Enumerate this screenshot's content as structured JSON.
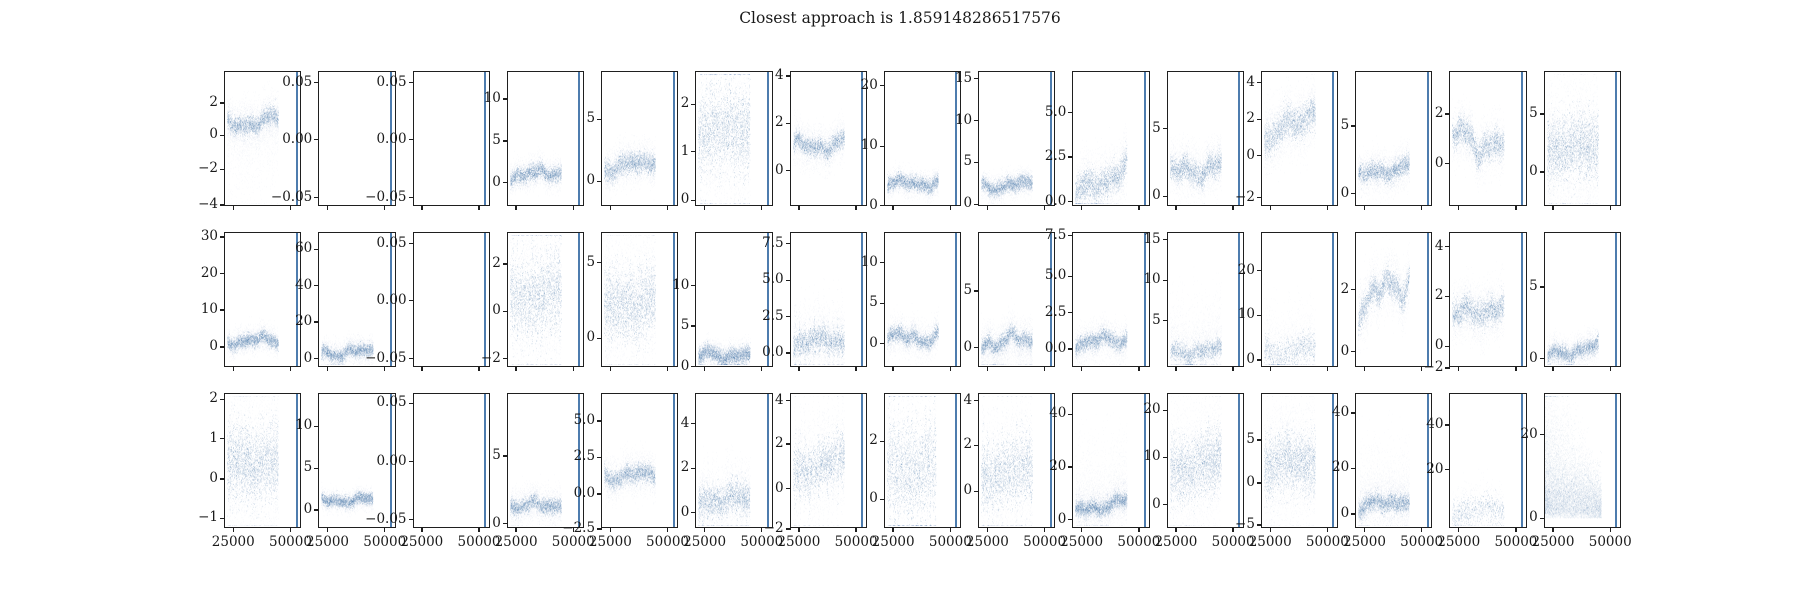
{
  "figure": {
    "title": "Closest approach is 1.859148286517576",
    "background": "#ffffff",
    "spine_color": "#1f1f1f",
    "marker_color": "#2e639c",
    "vline_color": "#4d7cae"
  },
  "chart_data": {
    "type": "scatter",
    "title": "Closest approach is 1.859148286517576",
    "grid": {
      "rows": 3,
      "cols": 15
    },
    "legend": "none",
    "x_tick_labels_bottom_row_only": true,
    "x_ticks": [
      {
        "label": "25000",
        "f": 0.11
      },
      {
        "label": "50000",
        "f": 0.87
      }
    ],
    "vline_x_frac": 0.95,
    "data_x_span": [
      0.03,
      0.71
    ],
    "subplots": [
      {
        "r": 1,
        "c": 1,
        "yticks": [
          [
            "2",
            0.23
          ],
          [
            "0",
            0.47
          ],
          [
            "−2",
            0.72
          ],
          [
            "−4",
            0.985
          ]
        ],
        "series": {
          "k": "band",
          "c0": 0.4,
          "c1": 0.35,
          "t": 0.035,
          "s": 0.09,
          "w": 0.025,
          "tail": "down",
          "tl": 0.28
        }
      },
      {
        "r": 1,
        "c": 2,
        "yticks": [
          [
            "0.05",
            0.08
          ],
          [
            "0.00",
            0.5
          ],
          [
            "−0.05",
            0.93
          ]
        ],
        "series": {
          "k": "empty"
        }
      },
      {
        "r": 1,
        "c": 3,
        "yticks": [
          [
            "0.05",
            0.08
          ],
          [
            "0.00",
            0.5
          ],
          [
            "−0.05",
            0.93
          ]
        ],
        "series": {
          "k": "empty"
        }
      },
      {
        "r": 1,
        "c": 4,
        "yticks": [
          [
            "10",
            0.2
          ],
          [
            "5",
            0.51
          ],
          [
            "0",
            0.82
          ]
        ],
        "series": {
          "k": "band",
          "c0": 0.78,
          "c1": 0.75,
          "t": 0.03,
          "s": 0.06
        }
      },
      {
        "r": 1,
        "c": 5,
        "yticks": [
          [
            "5",
            0.35
          ],
          [
            "0",
            0.81
          ]
        ],
        "series": {
          "k": "band",
          "c0": 0.73,
          "c1": 0.66,
          "t": 0.04,
          "s": 0.08
        }
      },
      {
        "r": 1,
        "c": 6,
        "yticks": [
          [
            "2",
            0.24
          ],
          [
            "1",
            0.59
          ],
          [
            "0",
            0.95
          ]
        ],
        "series": {
          "k": "band",
          "c0": 0.45,
          "c1": 0.42,
          "t": 0.12,
          "s": 0.24,
          "d": 1.25,
          "b": 0.3
        }
      },
      {
        "r": 1,
        "c": 7,
        "yticks": [
          [
            "4",
            0.03
          ],
          [
            "2",
            0.38
          ],
          [
            "0",
            0.73
          ]
        ],
        "series": {
          "k": "band",
          "c0": 0.56,
          "c1": 0.54,
          "t": 0.035,
          "s": 0.08,
          "w": 0.03
        }
      },
      {
        "r": 1,
        "c": 8,
        "yticks": [
          [
            "20",
            0.1
          ],
          [
            "10",
            0.55
          ],
          [
            "0",
            0.99
          ]
        ],
        "series": {
          "k": "band",
          "c0": 0.84,
          "c1": 0.83,
          "t": 0.028,
          "s": 0.05
        }
      },
      {
        "r": 1,
        "c": 9,
        "yticks": [
          [
            "15",
            0.05
          ],
          [
            "10",
            0.36
          ],
          [
            "5",
            0.67
          ],
          [
            "0",
            0.98
          ]
        ],
        "series": {
          "k": "band",
          "c0": 0.86,
          "c1": 0.84,
          "t": 0.028,
          "s": 0.05
        }
      },
      {
        "r": 1,
        "c": 10,
        "yticks": [
          [
            "5.0",
            0.3
          ],
          [
            "2.5",
            0.63
          ],
          [
            "0.0",
            0.96
          ]
        ],
        "series": {
          "k": "band",
          "c0": 0.92,
          "c1": 0.72,
          "t": 0.055,
          "s": 0.12,
          "w": 0.03
        }
      },
      {
        "r": 1,
        "c": 11,
        "yticks": [
          [
            "5",
            0.42
          ],
          [
            "0",
            0.92
          ]
        ],
        "series": {
          "k": "band",
          "c0": 0.76,
          "c1": 0.7,
          "t": 0.045,
          "s": 0.1,
          "w": 0.035
        }
      },
      {
        "r": 1,
        "c": 12,
        "yticks": [
          [
            "4",
            0.08
          ],
          [
            "2",
            0.35
          ],
          [
            "0",
            0.62
          ],
          [
            "−2",
            0.93
          ]
        ],
        "series": {
          "k": "band",
          "c0": 0.52,
          "c1": 0.28,
          "t": 0.06,
          "s": 0.13,
          "w": 0.03
        }
      },
      {
        "r": 1,
        "c": 13,
        "yticks": [
          [
            "5",
            0.4
          ],
          [
            "0",
            0.9
          ]
        ],
        "series": {
          "k": "band",
          "c0": 0.78,
          "c1": 0.7,
          "t": 0.035,
          "s": 0.08
        }
      },
      {
        "r": 1,
        "c": 14,
        "yticks": [
          [
            "2",
            0.31
          ],
          [
            "0",
            0.68
          ]
        ],
        "series": {
          "k": "band",
          "c0": 0.48,
          "c1": 0.56,
          "t": 0.05,
          "s": 0.11,
          "w": 0.06
        }
      },
      {
        "r": 1,
        "c": 15,
        "yticks": [
          [
            "5",
            0.31
          ],
          [
            "0",
            0.74
          ]
        ],
        "series": {
          "k": "band",
          "c0": 0.58,
          "c1": 0.55,
          "t": 0.12,
          "s": 0.24,
          "d": 1.3
        }
      },
      {
        "r": 2,
        "c": 1,
        "yticks": [
          [
            "30",
            0.03
          ],
          [
            "20",
            0.3
          ],
          [
            "10",
            0.57
          ],
          [
            "0",
            0.845
          ]
        ],
        "series": {
          "k": "band",
          "c0": 0.81,
          "c1": 0.8,
          "t": 0.025,
          "s": 0.05
        }
      },
      {
        "r": 2,
        "c": 2,
        "yticks": [
          [
            "60",
            0.12
          ],
          [
            "40",
            0.39
          ],
          [
            "20",
            0.66
          ],
          [
            "0",
            0.93
          ]
        ],
        "series": {
          "k": "band",
          "c0": 0.9,
          "c1": 0.89,
          "t": 0.025,
          "s": 0.05
        }
      },
      {
        "r": 2,
        "c": 3,
        "yticks": [
          [
            "0.05",
            0.08
          ],
          [
            "0.00",
            0.5
          ],
          [
            "−0.05",
            0.93
          ]
        ],
        "series": {
          "k": "empty"
        }
      },
      {
        "r": 2,
        "c": 4,
        "yticks": [
          [
            "2",
            0.23
          ],
          [
            "0",
            0.58
          ],
          [
            "−2",
            0.93
          ]
        ],
        "series": {
          "k": "band",
          "c0": 0.5,
          "c1": 0.44,
          "t": 0.11,
          "s": 0.23,
          "d": 1.2,
          "b": 0.35
        }
      },
      {
        "r": 2,
        "c": 5,
        "yticks": [
          [
            "5",
            0.22
          ],
          [
            "0",
            0.78
          ]
        ],
        "series": {
          "k": "band",
          "c0": 0.56,
          "c1": 0.5,
          "t": 0.13,
          "s": 0.25,
          "d": 1.2
        }
      },
      {
        "r": 2,
        "c": 6,
        "yticks": [
          [
            "10",
            0.39
          ],
          [
            "5",
            0.69
          ],
          [
            "0",
            0.99
          ]
        ],
        "series": {
          "k": "band",
          "c0": 0.92,
          "c1": 0.91,
          "t": 0.03,
          "s": 0.05,
          "d": 1.2
        }
      },
      {
        "r": 2,
        "c": 7,
        "yticks": [
          [
            "7.5",
            0.08
          ],
          [
            "5.0",
            0.35
          ],
          [
            "2.5",
            0.62
          ],
          [
            "0.0",
            0.89
          ]
        ],
        "series": {
          "k": "band",
          "c0": 0.82,
          "c1": 0.8,
          "t": 0.035,
          "s": 0.09,
          "b": 0.4
        }
      },
      {
        "r": 2,
        "c": 8,
        "yticks": [
          [
            "10",
            0.22
          ],
          [
            "5",
            0.52
          ],
          [
            "0",
            0.82
          ]
        ],
        "series": {
          "k": "band",
          "c0": 0.79,
          "c1": 0.78,
          "t": 0.03,
          "s": 0.07,
          "w": 0.03
        }
      },
      {
        "r": 2,
        "c": 9,
        "yticks": [
          [
            "5",
            0.43
          ],
          [
            "0",
            0.85
          ]
        ],
        "series": {
          "k": "band",
          "c0": 0.82,
          "c1": 0.8,
          "t": 0.03,
          "s": 0.08,
          "w": 0.035,
          "tail": "down",
          "tl": 0.12
        }
      },
      {
        "r": 2,
        "c": 10,
        "yticks": [
          [
            "7.5",
            0.02
          ],
          [
            "5.0",
            0.32
          ],
          [
            "2.5",
            0.59
          ],
          [
            "0.0",
            0.86
          ]
        ],
        "series": {
          "k": "band",
          "c0": 0.83,
          "c1": 0.79,
          "t": 0.03,
          "s": 0.07,
          "w": 0.025
        }
      },
      {
        "r": 2,
        "c": 11,
        "yticks": [
          [
            "15",
            0.05
          ],
          [
            "10",
            0.35
          ],
          [
            "5",
            0.65
          ]
        ],
        "series": {
          "k": "band",
          "c0": 0.9,
          "c1": 0.88,
          "t": 0.035,
          "s": 0.09,
          "d": 0.75,
          "tail": "up",
          "tl": 0.22
        }
      },
      {
        "r": 2,
        "c": 12,
        "yticks": [
          [
            "20",
            0.28
          ],
          [
            "10",
            0.61
          ],
          [
            "0",
            0.94
          ]
        ],
        "series": {
          "k": "band",
          "c0": 0.9,
          "c1": 0.87,
          "t": 0.05,
          "s": 0.11,
          "d": 0.45,
          "tail": "up",
          "tl": 0.2
        }
      },
      {
        "r": 2,
        "c": 13,
        "yticks": [
          [
            "2",
            0.42
          ],
          [
            "0",
            0.88
          ]
        ],
        "series": {
          "k": "band",
          "c0": 0.55,
          "c1": 0.33,
          "t": 0.05,
          "s": 0.12,
          "w": 0.07
        }
      },
      {
        "r": 2,
        "c": 14,
        "yticks": [
          [
            "4",
            0.1
          ],
          [
            "2",
            0.47
          ],
          [
            "0",
            0.84
          ],
          [
            "−2",
            1.0
          ]
        ],
        "series": {
          "k": "band",
          "c0": 0.62,
          "c1": 0.55,
          "t": 0.05,
          "s": 0.11,
          "w": 0.03
        }
      },
      {
        "r": 2,
        "c": 15,
        "yticks": [
          [
            "5",
            0.4
          ],
          [
            "0",
            0.93
          ]
        ],
        "series": {
          "k": "band",
          "c0": 0.92,
          "c1": 0.85,
          "t": 0.03,
          "s": 0.06
        }
      },
      {
        "r": 3,
        "c": 1,
        "yticks": [
          [
            "2",
            0.04
          ],
          [
            "1",
            0.33
          ],
          [
            "0",
            0.63
          ],
          [
            "−1",
            0.92
          ]
        ],
        "series": {
          "k": "band",
          "c0": 0.52,
          "c1": 0.5,
          "t": 0.14,
          "s": 0.26,
          "d": 1.3
        }
      },
      {
        "r": 3,
        "c": 2,
        "yticks": [
          [
            "10",
            0.24
          ],
          [
            "5",
            0.55
          ],
          [
            "0",
            0.86
          ]
        ],
        "series": {
          "k": "band",
          "c0": 0.8,
          "c1": 0.79,
          "t": 0.022,
          "s": 0.04,
          "w": 0.015
        }
      },
      {
        "r": 3,
        "c": 3,
        "yticks": [
          [
            "0.05",
            0.07
          ],
          [
            "0.00",
            0.5
          ],
          [
            "−0.05",
            0.93
          ]
        ],
        "series": {
          "k": "empty"
        }
      },
      {
        "r": 3,
        "c": 4,
        "yticks": [
          [
            "5",
            0.46
          ],
          [
            "0",
            0.96
          ]
        ],
        "series": {
          "k": "band",
          "c0": 0.84,
          "c1": 0.83,
          "t": 0.03,
          "s": 0.07
        }
      },
      {
        "r": 3,
        "c": 5,
        "yticks": [
          [
            "5.0",
            0.2
          ],
          [
            "2.5",
            0.47
          ],
          [
            "0.0",
            0.74
          ],
          [
            "−2.5",
            1.0
          ]
        ],
        "series": {
          "k": "band",
          "c0": 0.62,
          "c1": 0.6,
          "t": 0.035,
          "s": 0.08
        }
      },
      {
        "r": 3,
        "c": 6,
        "yticks": [
          [
            "4",
            0.22
          ],
          [
            "2",
            0.55
          ],
          [
            "0",
            0.88
          ]
        ],
        "series": {
          "k": "band",
          "c0": 0.8,
          "c1": 0.78,
          "t": 0.045,
          "s": 0.1,
          "b": 0.3
        }
      },
      {
        "r": 3,
        "c": 7,
        "yticks": [
          [
            "4",
            0.05
          ],
          [
            "2",
            0.37
          ],
          [
            "0",
            0.7
          ],
          [
            "−2",
            1.0
          ]
        ],
        "series": {
          "k": "band",
          "c0": 0.6,
          "c1": 0.47,
          "t": 0.06,
          "s": 0.14,
          "b": 0.5
        }
      },
      {
        "r": 3,
        "c": 8,
        "yticks": [
          [
            "2",
            0.35
          ],
          [
            "0",
            0.78
          ]
        ],
        "series": {
          "k": "band",
          "c0": 0.58,
          "c1": 0.55,
          "t": 0.12,
          "s": 0.22,
          "b": 0.5,
          "d": 1.1,
          "xe": 0.68
        }
      },
      {
        "r": 3,
        "c": 9,
        "yticks": [
          [
            "4",
            0.05
          ],
          [
            "2",
            0.38
          ],
          [
            "0",
            0.72
          ]
        ],
        "series": {
          "k": "band",
          "c0": 0.62,
          "c1": 0.55,
          "t": 0.09,
          "s": 0.18,
          "b": 0.4,
          "d": 1.1
        }
      },
      {
        "r": 3,
        "c": 10,
        "yticks": [
          [
            "40",
            0.15
          ],
          [
            "20",
            0.54
          ],
          [
            "0",
            0.93
          ]
        ],
        "series": {
          "k": "band",
          "c0": 0.88,
          "c1": 0.8,
          "t": 0.03,
          "s": 0.08,
          "tail": "up",
          "tl": 0.25,
          "d": 1.2
        }
      },
      {
        "r": 3,
        "c": 11,
        "yticks": [
          [
            "20",
            0.12
          ],
          [
            "10",
            0.47
          ],
          [
            "0",
            0.82
          ]
        ],
        "series": {
          "k": "band",
          "c0": 0.58,
          "c1": 0.5,
          "t": 0.12,
          "s": 0.22,
          "d": 1.2
        }
      },
      {
        "r": 3,
        "c": 12,
        "yticks": [
          [
            "5",
            0.34
          ],
          [
            "0",
            0.66
          ],
          [
            "−5",
            0.97
          ]
        ],
        "series": {
          "k": "band",
          "c0": 0.54,
          "c1": 0.5,
          "t": 0.11,
          "s": 0.22,
          "d": 1.2
        }
      },
      {
        "r": 3,
        "c": 13,
        "yticks": [
          [
            "40",
            0.14
          ],
          [
            "20",
            0.55
          ],
          [
            "0",
            0.89
          ]
        ],
        "series": {
          "k": "band",
          "c0": 0.85,
          "c1": 0.79,
          "t": 0.035,
          "s": 0.09,
          "tail": "up",
          "tl": 0.22,
          "d": 1.1
        }
      },
      {
        "r": 3,
        "c": 14,
        "yticks": [
          [
            "40",
            0.23
          ],
          [
            "20",
            0.56
          ]
        ],
        "series": {
          "k": "band",
          "c0": 0.88,
          "c1": 0.86,
          "t": 0.05,
          "s": 0.1,
          "d": 0.35
        }
      },
      {
        "r": 3,
        "c": 15,
        "yticks": [
          [
            "20",
            0.3
          ],
          [
            "0",
            0.92
          ]
        ],
        "series": {
          "k": "corner",
          "c0": 0.85,
          "s": 0.32,
          "d": 1.25,
          "xe": 0.75
        }
      }
    ]
  }
}
